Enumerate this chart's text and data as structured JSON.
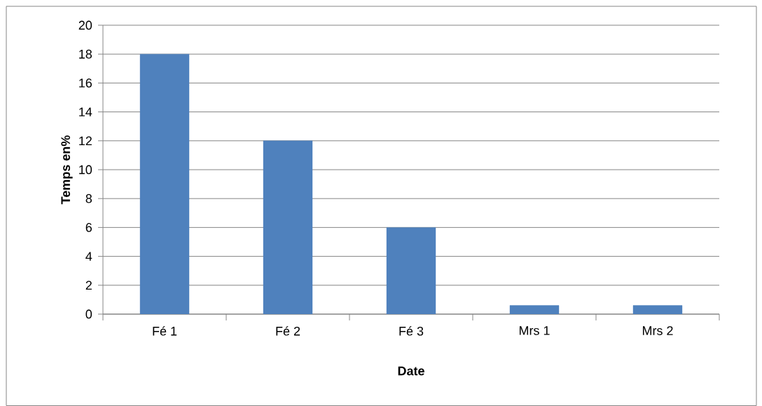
{
  "chart_data": {
    "type": "bar",
    "categories": [
      "Fé 1",
      "Fé 2",
      "Fé 3",
      "Mrs 1",
      "Mrs 2"
    ],
    "values": [
      18,
      12,
      6,
      0.6,
      0.6
    ],
    "color": "#4f81bd",
    "xlabel": "Date",
    "ylabel": "Temps en%",
    "ylim": [
      0,
      20
    ],
    "yticks": [
      0,
      2,
      4,
      6,
      8,
      10,
      12,
      14,
      16,
      18,
      20
    ],
    "grid": "y"
  }
}
